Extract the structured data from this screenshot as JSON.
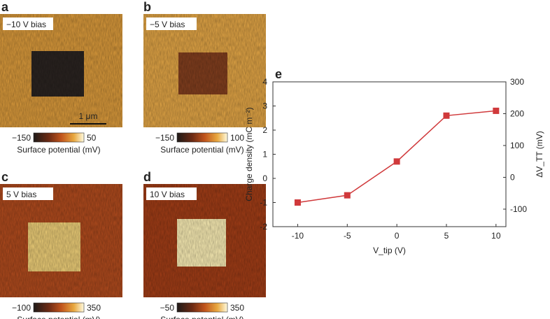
{
  "panels": [
    {
      "letter": "a",
      "bias": "−10 V bias",
      "colorbar_min": "−150",
      "colorbar_max": "50",
      "colorbar_label": "Surface potential (mV)",
      "scale_bar": "1 μm"
    },
    {
      "letter": "b",
      "bias": "−5 V bias",
      "colorbar_min": "−150",
      "colorbar_max": "100",
      "colorbar_label": "Surface potential (mV)"
    },
    {
      "letter": "c",
      "bias": "5 V bias",
      "colorbar_min": "−100",
      "colorbar_max": "350",
      "colorbar_label": "Surface potential (mV)"
    },
    {
      "letter": "d",
      "bias": "10 V bias",
      "colorbar_min": "−50",
      "colorbar_max": "350",
      "colorbar_label": "Surface potential (mV)"
    }
  ],
  "chart_data": {
    "type": "line",
    "letter": "e",
    "x": [
      -10,
      -5,
      0,
      5,
      10
    ],
    "series": [
      {
        "color": "#d0393b",
        "values": [
          -1,
          -0.7,
          0.7,
          2.6,
          2.8
        ]
      }
    ],
    "xlim": [
      -12.5,
      11
    ],
    "xticks": [
      -10,
      -5,
      0,
      5,
      10
    ],
    "ylim": [
      -2,
      4
    ],
    "yticks": [
      -2,
      -1,
      0,
      1,
      2,
      3,
      4
    ],
    "y2lim": [
      -155,
      300
    ],
    "y2ticks": [
      -100,
      0,
      100,
      200,
      300
    ],
    "xlabel": "V_tip (V)",
    "ylabel": "Charge density (mC m⁻²)",
    "y2label": "ΔV_TT (mV)"
  }
}
